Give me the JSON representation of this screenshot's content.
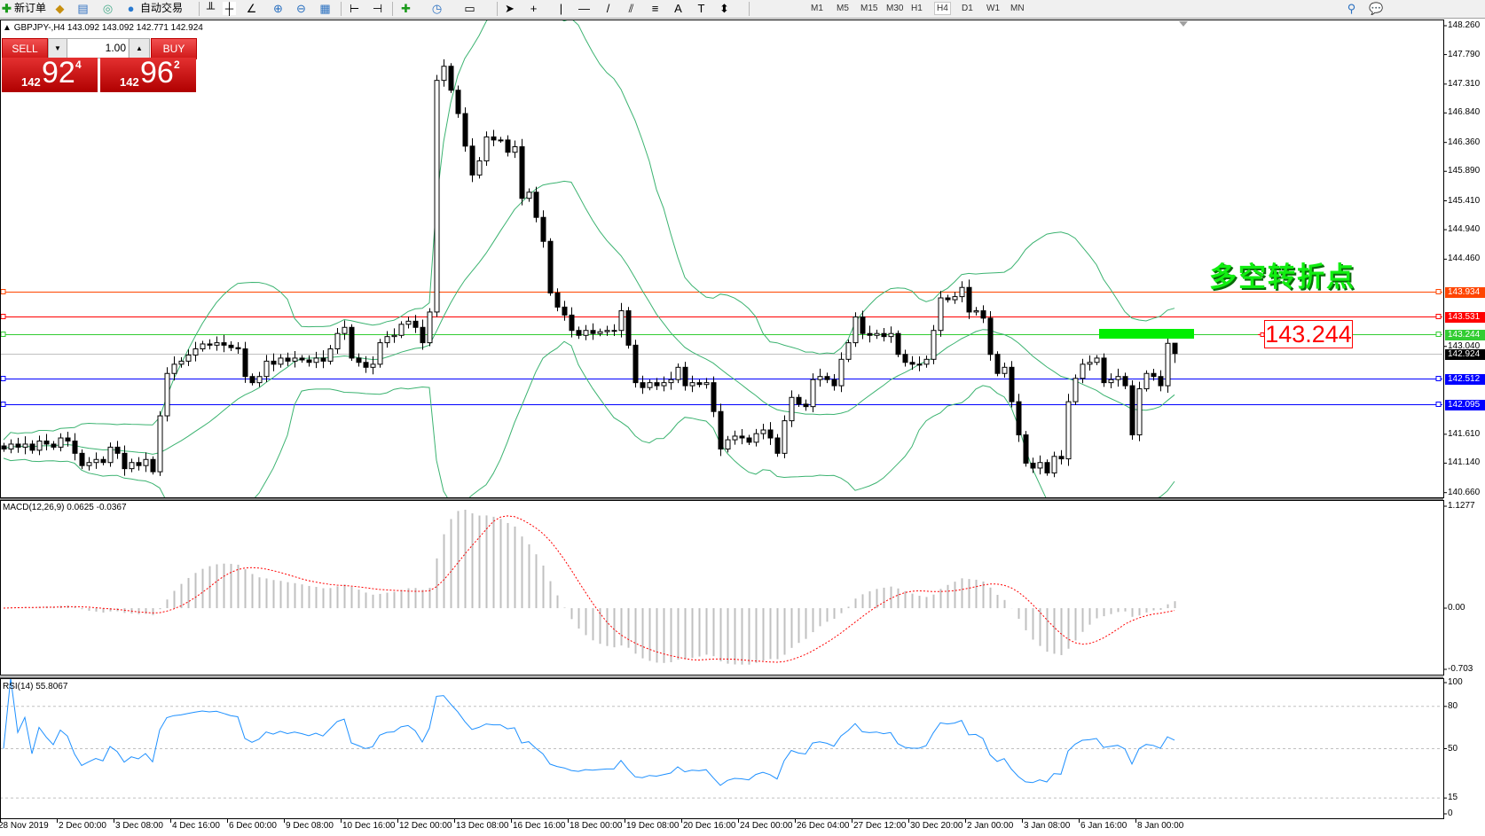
{
  "toolbar": {
    "new_order": "新订单",
    "auto_trading": "自动交易",
    "timeframes": [
      "M1",
      "M5",
      "M15",
      "M30",
      "H1",
      "H4",
      "D1",
      "W1",
      "MN"
    ],
    "active_timeframe": "H4"
  },
  "chart": {
    "symbol": "GBPJPY-,H4",
    "ohlc": "143.092 143.092 142.771 142.924"
  },
  "trade_panel": {
    "sell_label": "SELL",
    "buy_label": "BUY",
    "lot": "1.00",
    "sell_price": {
      "big": "142",
      "main": "92",
      "pip": "4"
    },
    "buy_price": {
      "big": "142",
      "main": "96",
      "pip": "2"
    }
  },
  "price_axis": [
    "148.260",
    "147.790",
    "147.310",
    "146.840",
    "146.360",
    "145.890",
    "145.410",
    "144.940",
    "144.460",
    "143.040",
    "141.610",
    "141.140",
    "140.660"
  ],
  "levels": [
    {
      "price": "143.934",
      "color": "#ff4500"
    },
    {
      "price": "143.531",
      "color": "#ff0000"
    },
    {
      "price": "143.244",
      "color": "#32cd32"
    },
    {
      "price": "142.924",
      "color": "#000000",
      "line": "#c0c0c0"
    },
    {
      "price": "142.512",
      "color": "#0000ff"
    },
    {
      "price": "142.095",
      "color": "#0000ff"
    }
  ],
  "annotation": {
    "text": "多空转折点",
    "label": "143.244",
    "text_color": "#11ee11",
    "bar_color": "#00ee00"
  },
  "macd": {
    "title": "MACD(12,26,9) 0.0625 -0.0367",
    "ticks": [
      "1.1277",
      "0.00",
      "-0.703"
    ],
    "ylim": [
      -0.703,
      1.1277
    ]
  },
  "rsi": {
    "title": "RSI(14) 55.8067",
    "ticks": [
      "100",
      "80",
      "50",
      "15",
      "0"
    ],
    "levels": [
      80,
      50,
      15
    ]
  },
  "time_axis": [
    "28 Nov 2019",
    "2 Dec 00:00",
    "3 Dec 08:00",
    "4 Dec 16:00",
    "6 Dec 00:00",
    "9 Dec 08:00",
    "10 Dec 16:00",
    "12 Dec 00:00",
    "13 Dec 08:00",
    "16 Dec 16:00",
    "18 Dec 00:00",
    "19 Dec 08:00",
    "20 Dec 16:00",
    "24 Dec 00:00",
    "26 Dec 04:00",
    "27 Dec 12:00",
    "30 Dec 20:00",
    "2 Jan 00:00",
    "3 Jan 08:00",
    "6 Jan 16:00",
    "8 Jan 00:00"
  ],
  "chart_data": {
    "type": "candlestick",
    "ylim": [
      140.66,
      148.26
    ],
    "indicators": [
      "Bollinger Bands(20,2)",
      "MACD(12,26,9)",
      "RSI(14)"
    ],
    "last_bar": {
      "open": 143.092,
      "high": 143.092,
      "low": 142.771,
      "close": 142.924
    },
    "close": [
      141.37,
      141.45,
      141.4,
      141.45,
      141.35,
      141.5,
      141.45,
      141.4,
      141.55,
      141.5,
      141.3,
      141.1,
      141.15,
      141.2,
      141.15,
      141.4,
      141.3,
      141.05,
      141.15,
      141.1,
      141.2,
      141.0,
      141.91,
      142.6,
      142.75,
      142.8,
      142.9,
      143.0,
      143.08,
      143.06,
      143.1,
      143.06,
      143.02,
      143.0,
      142.55,
      142.45,
      142.55,
      142.8,
      142.75,
      142.85,
      142.8,
      142.85,
      142.82,
      142.78,
      142.85,
      142.8,
      143.0,
      143.25,
      143.35,
      142.85,
      142.78,
      142.7,
      142.75,
      143.1,
      143.2,
      143.22,
      143.4,
      143.45,
      143.35,
      143.1,
      143.6,
      147.37,
      147.6,
      147.21,
      146.83,
      146.3,
      145.83,
      146.06,
      146.45,
      146.4,
      146.4,
      146.2,
      146.29,
      145.45,
      145.55,
      145.14,
      144.75,
      143.91,
      143.68,
      143.55,
      143.3,
      143.22,
      143.3,
      143.25,
      143.28,
      143.3,
      143.3,
      143.62,
      143.06,
      142.45,
      142.37,
      142.45,
      142.4,
      142.45,
      142.5,
      142.7,
      142.4,
      142.45,
      142.42,
      142.45,
      141.98,
      141.37,
      141.52,
      141.58,
      141.55,
      141.48,
      141.62,
      141.68,
      141.55,
      141.3,
      141.83,
      142.21,
      142.1,
      142.06,
      142.5,
      142.55,
      142.5,
      142.4,
      142.83,
      143.1,
      143.52,
      143.25,
      143.22,
      143.25,
      143.2,
      143.25,
      142.91,
      142.78,
      142.75,
      142.75,
      142.83,
      143.3,
      143.83,
      143.8,
      143.85,
      144.0,
      143.6,
      143.62,
      143.5,
      142.91,
      142.6,
      142.7,
      142.14,
      141.6,
      141.14,
      141.06,
      141.15,
      140.98,
      141.25,
      141.21,
      142.14,
      142.52,
      142.75,
      142.78,
      142.85,
      142.45,
      142.5,
      142.55,
      142.4,
      141.6,
      142.35,
      142.6,
      142.55,
      142.4,
      143.09,
      142.924
    ]
  }
}
